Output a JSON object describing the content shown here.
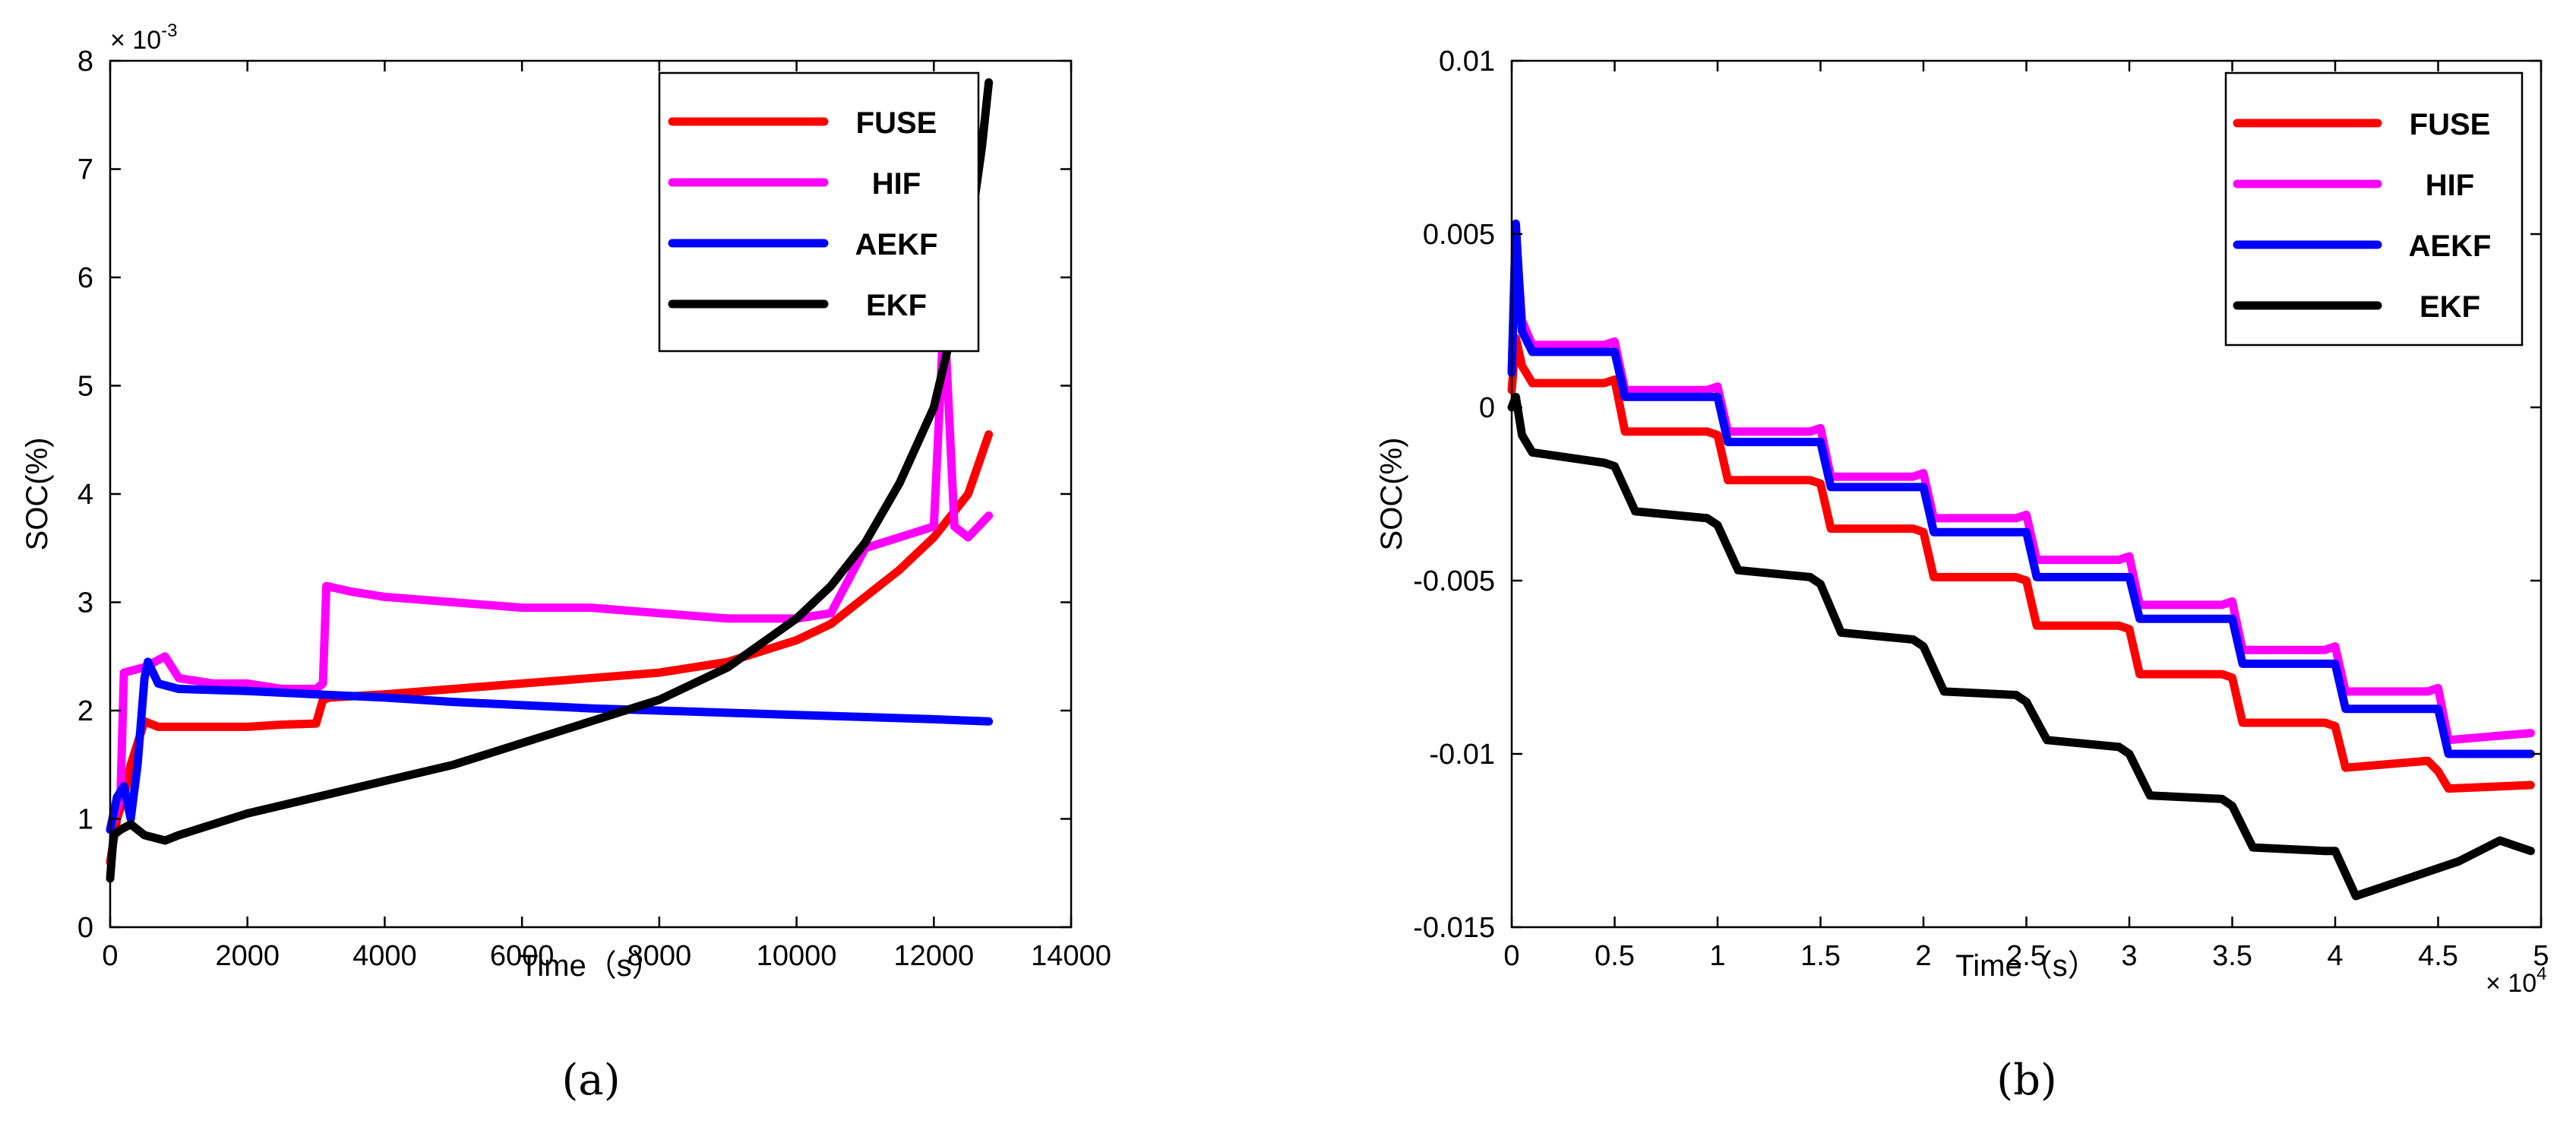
{
  "chart_data": [
    {
      "type": "line",
      "caption": "(a)",
      "xlabel": "Time（s）",
      "ylabel": "SOC(%)",
      "xlim": [
        0,
        14000
      ],
      "ylim": [
        0,
        8
      ],
      "xticks": [
        0,
        2000,
        4000,
        6000,
        8000,
        10000,
        12000,
        14000
      ],
      "xtick_labels": [
        "0",
        "2000",
        "4000",
        "6000",
        "8000",
        "10000",
        "12000",
        "14000"
      ],
      "yticks": [
        0,
        1,
        2,
        3,
        4,
        5,
        6,
        7,
        8
      ],
      "ytick_labels": [
        "0",
        "1",
        "2",
        "3",
        "4",
        "5",
        "6",
        "7",
        "8"
      ],
      "y_scale_label": "× 10",
      "y_scale_exponent": "-3",
      "legend_location": "top-right",
      "series": [
        {
          "name": "FUSE",
          "color": "#ff0000",
          "x": [
            0,
            100,
            200,
            300,
            400,
            500,
            700,
            1000,
            1500,
            2000,
            2500,
            3000,
            3100,
            3200,
            4000,
            5000,
            6000,
            7000,
            8000,
            9000,
            9500,
            10000,
            10500,
            11000,
            11500,
            12000,
            12500,
            12800
          ],
          "y": [
            0.6,
            1.0,
            1.2,
            1.5,
            1.7,
            1.9,
            1.85,
            1.85,
            1.85,
            1.85,
            1.87,
            1.88,
            2.1,
            2.12,
            2.15,
            2.2,
            2.25,
            2.3,
            2.35,
            2.45,
            2.55,
            2.65,
            2.8,
            3.05,
            3.3,
            3.6,
            4.0,
            4.55
          ]
        },
        {
          "name": "HIF",
          "color": "#ff00ff",
          "x": [
            0,
            150,
            200,
            500,
            800,
            1000,
            1500,
            2000,
            2500,
            3000,
            3100,
            3150,
            3500,
            4000,
            5000,
            6000,
            7000,
            8000,
            9000,
            10000,
            10500,
            11000,
            11500,
            12000,
            12150,
            12300,
            12500,
            12800
          ],
          "y": [
            0.9,
            1.2,
            2.35,
            2.4,
            2.5,
            2.3,
            2.25,
            2.25,
            2.2,
            2.2,
            2.25,
            3.15,
            3.1,
            3.05,
            3.0,
            2.95,
            2.95,
            2.9,
            2.85,
            2.85,
            2.9,
            3.5,
            3.6,
            3.7,
            5.7,
            3.7,
            3.6,
            3.8
          ]
        },
        {
          "name": "AEKF",
          "color": "#0000ff",
          "x": [
            0,
            100,
            200,
            300,
            400,
            500,
            550,
            700,
            1000,
            2000,
            3000,
            4000,
            5000,
            6000,
            7000,
            8000,
            9000,
            10000,
            11000,
            12000,
            12800
          ],
          "y": [
            0.9,
            1.2,
            1.3,
            1.0,
            1.5,
            2.3,
            2.45,
            2.25,
            2.2,
            2.18,
            2.15,
            2.12,
            2.08,
            2.05,
            2.02,
            2.0,
            1.98,
            1.96,
            1.94,
            1.92,
            1.9
          ]
        },
        {
          "name": "EKF",
          "color": "#000000",
          "x": [
            0,
            50,
            150,
            300,
            500,
            800,
            1000,
            2000,
            3000,
            4000,
            5000,
            6000,
            7000,
            8000,
            9000,
            10000,
            10500,
            11000,
            11500,
            12000,
            12300,
            12500,
            12700,
            12800
          ],
          "y": [
            0.45,
            0.85,
            0.9,
            0.95,
            0.85,
            0.8,
            0.85,
            1.05,
            1.2,
            1.35,
            1.5,
            1.7,
            1.9,
            2.1,
            2.4,
            2.85,
            3.15,
            3.55,
            4.1,
            4.8,
            5.6,
            6.3,
            7.2,
            7.8
          ]
        }
      ]
    },
    {
      "type": "line",
      "caption": "(b)",
      "xlabel": "Time（s）",
      "ylabel": "SOC(%)",
      "xlim": [
        0,
        5
      ],
      "ylim": [
        -0.015,
        0.01
      ],
      "xticks": [
        0,
        0.5,
        1,
        1.5,
        2,
        2.5,
        3,
        3.5,
        4,
        4.5,
        5
      ],
      "xtick_labels": [
        "0",
        "0.5",
        "1",
        "1.5",
        "2",
        "2.5",
        "3",
        "3.5",
        "4",
        "4.5",
        "5"
      ],
      "yticks": [
        -0.015,
        -0.01,
        -0.005,
        0,
        0.005,
        0.01
      ],
      "ytick_labels": [
        "-0.015",
        "-0.01",
        "-0.005",
        "0",
        "0.005",
        "0.01"
      ],
      "x_scale_label": "× 10",
      "x_scale_exponent": "4",
      "legend_location": "top-right",
      "series": [
        {
          "name": "FUSE",
          "color": "#ff0000",
          "x": [
            0,
            0.02,
            0.05,
            0.1,
            0.45,
            0.5,
            0.55,
            0.95,
            1.0,
            1.05,
            1.45,
            1.5,
            1.55,
            1.95,
            2.0,
            2.05,
            2.45,
            2.5,
            2.55,
            2.95,
            3.0,
            3.05,
            3.45,
            3.5,
            3.55,
            3.95,
            4.0,
            4.05,
            4.45,
            4.5,
            4.55,
            4.95
          ],
          "y": [
            0.0005,
            0.002,
            0.0012,
            0.0007,
            0.0007,
            0.0008,
            -0.0007,
            -0.0007,
            -0.0008,
            -0.0021,
            -0.0021,
            -0.0022,
            -0.0035,
            -0.0035,
            -0.0036,
            -0.0049,
            -0.0049,
            -0.005,
            -0.0063,
            -0.0063,
            -0.0064,
            -0.0077,
            -0.0077,
            -0.0078,
            -0.0091,
            -0.0091,
            -0.0092,
            -0.0104,
            -0.0102,
            -0.0105,
            -0.011,
            -0.0109
          ]
        },
        {
          "name": "HIF",
          "color": "#ff00ff",
          "x": [
            0,
            0.02,
            0.05,
            0.1,
            0.45,
            0.5,
            0.55,
            0.95,
            1.0,
            1.05,
            1.45,
            1.5,
            1.55,
            1.95,
            2.0,
            2.05,
            2.45,
            2.5,
            2.55,
            2.95,
            3.0,
            3.05,
            3.45,
            3.5,
            3.55,
            3.95,
            4.0,
            4.05,
            4.45,
            4.5,
            4.55,
            4.95
          ],
          "y": [
            0.001,
            0.005,
            0.0025,
            0.0018,
            0.0018,
            0.0019,
            0.0005,
            0.0005,
            0.0006,
            -0.0007,
            -0.0007,
            -0.0006,
            -0.002,
            -0.002,
            -0.0019,
            -0.0032,
            -0.0032,
            -0.0031,
            -0.0044,
            -0.0044,
            -0.0043,
            -0.0057,
            -0.0057,
            -0.0056,
            -0.007,
            -0.007,
            -0.0069,
            -0.0082,
            -0.0082,
            -0.0081,
            -0.0096,
            -0.0094
          ]
        },
        {
          "name": "AEKF",
          "color": "#0000ff",
          "x": [
            0,
            0.02,
            0.05,
            0.1,
            0.45,
            0.5,
            0.55,
            0.95,
            1.0,
            1.05,
            1.45,
            1.5,
            1.55,
            1.95,
            2.0,
            2.05,
            2.45,
            2.5,
            2.55,
            2.95,
            3.0,
            3.05,
            3.45,
            3.5,
            3.55,
            3.95,
            4.0,
            4.05,
            4.45,
            4.5,
            4.55,
            4.95
          ],
          "y": [
            0.001,
            0.0053,
            0.0022,
            0.0016,
            0.0016,
            0.0016,
            0.0003,
            0.0003,
            0.0003,
            -0.001,
            -0.001,
            -0.001,
            -0.0023,
            -0.0023,
            -0.0023,
            -0.0036,
            -0.0036,
            -0.0036,
            -0.0049,
            -0.0049,
            -0.0049,
            -0.0061,
            -0.0061,
            -0.0061,
            -0.0074,
            -0.0074,
            -0.0074,
            -0.0087,
            -0.0087,
            -0.0087,
            -0.01,
            -0.01
          ]
        },
        {
          "name": "EKF",
          "color": "#000000",
          "x": [
            0,
            0.02,
            0.05,
            0.1,
            0.45,
            0.5,
            0.6,
            0.95,
            1.0,
            1.1,
            1.45,
            1.5,
            1.6,
            1.95,
            2.0,
            2.1,
            2.45,
            2.5,
            2.6,
            2.95,
            3.0,
            3.1,
            3.45,
            3.5,
            3.6,
            3.95,
            4.0,
            4.1,
            4.3,
            4.6,
            4.8,
            4.95
          ],
          "y": [
            0.0,
            0.0003,
            -0.0008,
            -0.0013,
            -0.0016,
            -0.0017,
            -0.003,
            -0.0032,
            -0.0034,
            -0.0047,
            -0.0049,
            -0.0051,
            -0.0065,
            -0.0067,
            -0.0069,
            -0.0082,
            -0.0083,
            -0.0085,
            -0.0096,
            -0.0098,
            -0.01,
            -0.0112,
            -0.0113,
            -0.0115,
            -0.0127,
            -0.0128,
            -0.0128,
            -0.0141,
            -0.0137,
            -0.0131,
            -0.0125,
            -0.0128
          ]
        }
      ]
    }
  ]
}
